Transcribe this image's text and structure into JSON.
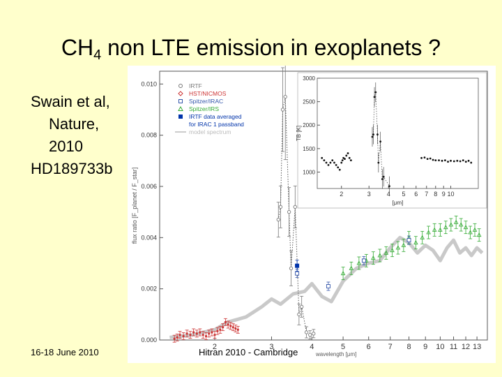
{
  "slide": {
    "title_main": "CH",
    "title_sub": "4",
    "title_rest": " non LTE emission in exoplanets ?",
    "citation": [
      "Swain et al,",
      "Nature,",
      "2010",
      "HD189733b"
    ],
    "footer_left": "16-18 June 2010",
    "footer_center": "Hitran 2010 - Cambridge"
  },
  "colors": {
    "background": "#ffffcc",
    "irtf": "#777777",
    "hst": "#cc3333",
    "spitzer_irac": "#3355aa",
    "spitzer_irs": "#33aa33",
    "irtf_avg": "#0033aa",
    "model": "#bbbbbb"
  },
  "chart_data": [
    {
      "type": "scatter",
      "xlabel": "wavelength [μm]",
      "ylabel": "flux ratio [F_planet / F_star]",
      "x_scale": "log",
      "xlim": [
        1.35,
        14
      ],
      "ylim": [
        0,
        0.0105
      ],
      "x_ticks": [
        2,
        3,
        4,
        5,
        6,
        7,
        8,
        9,
        10,
        11,
        12,
        13
      ],
      "y_ticks": [
        "0.000",
        "0.002",
        "0.004",
        "0.006",
        "0.008",
        "0.010"
      ],
      "legend_position": "top-left",
      "legend": [
        "IRTF",
        "HST/NICMOS",
        "Spitzer/IRAC",
        "Spitzer/IRS",
        "IRTF data averaged",
        "for IRAC 1 passband",
        "model spectrum"
      ],
      "series": [
        {
          "name": "IRTF",
          "points": [
            [
              3.15,
              0.0047
            ],
            [
              3.2,
              0.0052
            ],
            [
              3.25,
              0.009
            ],
            [
              3.31,
              0.0095
            ],
            [
              3.4,
              0.005
            ],
            [
              3.45,
              0.0028
            ],
            [
              3.55,
              0.0052
            ],
            [
              3.65,
              0.001
            ],
            [
              3.72,
              0.0013
            ],
            [
              3.85,
              0.0003
            ],
            [
              3.95,
              0.0002
            ],
            [
              4.05,
              0.00025
            ]
          ]
        },
        {
          "name": "HST/NICMOS",
          "points": [
            [
              1.5,
              5e-05
            ],
            [
              1.53,
              0.0001
            ],
            [
              1.56,
              0.0002
            ],
            [
              1.6,
              0.00015
            ],
            [
              1.64,
              0.00025
            ],
            [
              1.68,
              0.0002
            ],
            [
              1.72,
              0.0003
            ],
            [
              1.76,
              0.00025
            ],
            [
              1.8,
              0.0003
            ],
            [
              1.84,
              0.0002
            ],
            [
              1.88,
              0.00015
            ],
            [
              1.92,
              0.00025
            ],
            [
              1.96,
              0.0003
            ],
            [
              2.0,
              0.0002
            ],
            [
              2.04,
              0.00035
            ],
            [
              2.08,
              0.0004
            ],
            [
              2.12,
              0.0005
            ],
            [
              2.16,
              0.0007
            ],
            [
              2.2,
              0.0006
            ],
            [
              2.24,
              0.00055
            ],
            [
              2.28,
              0.0005
            ],
            [
              2.32,
              0.00045
            ],
            [
              2.36,
              0.0004
            ]
          ]
        },
        {
          "name": "Spitzer/IRAC",
          "points": [
            [
              3.6,
              0.0026
            ],
            [
              4.5,
              0.0021
            ],
            [
              5.8,
              0.0031
            ],
            [
              8.0,
              0.0039
            ]
          ]
        },
        {
          "name": "Spitzer/IRS",
          "points": [
            [
              5.0,
              0.0026
            ],
            [
              5.3,
              0.0028
            ],
            [
              5.6,
              0.003
            ],
            [
              5.9,
              0.0031
            ],
            [
              6.2,
              0.0032
            ],
            [
              6.5,
              0.0033
            ],
            [
              6.8,
              0.0034
            ],
            [
              7.1,
              0.0035
            ],
            [
              7.4,
              0.0036
            ],
            [
              7.7,
              0.0037
            ],
            [
              8.0,
              0.004
            ],
            [
              8.4,
              0.0038
            ],
            [
              8.8,
              0.004
            ],
            [
              9.2,
              0.0042
            ],
            [
              9.6,
              0.0043
            ],
            [
              10.0,
              0.0043
            ],
            [
              10.4,
              0.0044
            ],
            [
              10.8,
              0.0045
            ],
            [
              11.2,
              0.0046
            ],
            [
              11.6,
              0.0045
            ],
            [
              12.0,
              0.0044
            ],
            [
              12.4,
              0.0042
            ],
            [
              12.8,
              0.0043
            ],
            [
              13.2,
              0.0041
            ]
          ]
        },
        {
          "name": "IRTF data averaged for IRAC 1 passband",
          "points": [
            [
              3.6,
              0.0029
            ]
          ]
        },
        {
          "name": "model spectrum",
          "points": [
            [
              1.45,
              0.0001
            ],
            [
              1.7,
              0.0002
            ],
            [
              2.0,
              0.0004
            ],
            [
              2.2,
              0.0007
            ],
            [
              2.5,
              0.0009
            ],
            [
              2.8,
              0.0013
            ],
            [
              3.0,
              0.0016
            ],
            [
              3.2,
              0.0014
            ],
            [
              3.5,
              0.0018
            ],
            [
              3.8,
              0.0019
            ],
            [
              4.0,
              0.0022
            ],
            [
              4.3,
              0.0017
            ],
            [
              4.6,
              0.0015
            ],
            [
              5.0,
              0.0023
            ],
            [
              5.5,
              0.0028
            ],
            [
              6.0,
              0.003
            ],
            [
              6.5,
              0.0031
            ],
            [
              7.0,
              0.0036
            ],
            [
              7.5,
              0.004
            ],
            [
              8.0,
              0.0038
            ],
            [
              8.5,
              0.0034
            ],
            [
              9.0,
              0.0037
            ],
            [
              9.5,
              0.0035
            ],
            [
              10.0,
              0.0031
            ],
            [
              10.5,
              0.0036
            ],
            [
              11.0,
              0.0039
            ],
            [
              11.5,
              0.0034
            ],
            [
              12.0,
              0.0036
            ],
            [
              12.5,
              0.0033
            ],
            [
              13.0,
              0.0036
            ],
            [
              13.5,
              0.0034
            ]
          ]
        }
      ]
    },
    {
      "type": "scatter",
      "xlabel": "[μm]",
      "ylabel": "TB [K]",
      "x_scale": "log",
      "xlim": [
        1.4,
        15
      ],
      "ylim": [
        650,
        3000
      ],
      "x_ticks": [
        2,
        3,
        4,
        5,
        6,
        7,
        8,
        9,
        10
      ],
      "y_ticks": [
        1000,
        1500,
        2000,
        2500,
        3000
      ],
      "series": [
        {
          "name": "",
          "points": [
            [
              1.5,
              1300
            ],
            [
              1.55,
              1250
            ],
            [
              1.6,
              1200
            ],
            [
              1.65,
              1150
            ],
            [
              1.7,
              1200
            ],
            [
              1.75,
              1250
            ],
            [
              1.8,
              1200
            ],
            [
              1.85,
              1150
            ],
            [
              1.9,
              1100
            ],
            [
              1.95,
              1050
            ],
            [
              2.0,
              1200
            ],
            [
              2.03,
              1250
            ],
            [
              2.06,
              1300
            ],
            [
              2.1,
              1280
            ],
            [
              2.15,
              1350
            ],
            [
              2.2,
              1400
            ],
            [
              2.25,
              1300
            ],
            [
              2.3,
              1250
            ],
            [
              3.15,
              1750
            ],
            [
              3.2,
              1800
            ],
            [
              3.25,
              2600
            ],
            [
              3.31,
              2700
            ],
            [
              3.4,
              1800
            ],
            [
              3.45,
              1200
            ],
            [
              3.55,
              1650
            ],
            [
              3.65,
              850
            ],
            [
              3.72,
              900
            ],
            [
              4.05,
              700
            ],
            [
              6.5,
              1300
            ],
            [
              6.8,
              1310
            ],
            [
              7.1,
              1280
            ],
            [
              7.4,
              1290
            ],
            [
              7.7,
              1260
            ],
            [
              8.0,
              1250
            ],
            [
              8.4,
              1250
            ],
            [
              8.8,
              1240
            ],
            [
              9.2,
              1250
            ],
            [
              9.6,
              1220
            ],
            [
              10.0,
              1240
            ],
            [
              10.5,
              1230
            ],
            [
              11.0,
              1240
            ],
            [
              11.5,
              1230
            ],
            [
              12.0,
              1250
            ],
            [
              12.5,
              1220
            ],
            [
              13.0,
              1240
            ],
            [
              13.5,
              1200
            ]
          ]
        }
      ]
    }
  ]
}
